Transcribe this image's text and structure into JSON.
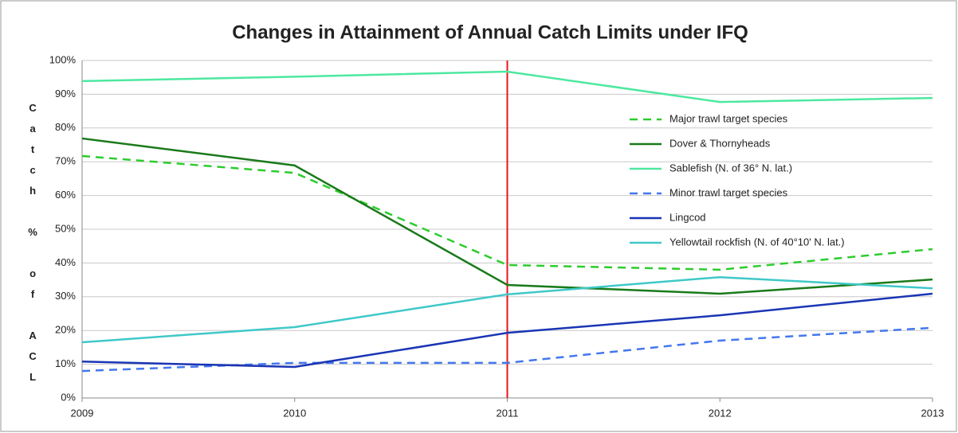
{
  "chart_data": {
    "type": "line",
    "title": "Changes in Attainment of Annual Catch Limits under IFQ",
    "y_label": "Catch % of ACL",
    "x": [
      2009,
      2010,
      2011,
      2012,
      2013
    ],
    "xlim": [
      2009,
      2013
    ],
    "xticks": [
      2009,
      2010,
      2011,
      2012,
      2013
    ],
    "ylim": [
      0,
      100
    ],
    "yticks": [
      {
        "value": 0,
        "label": "0%"
      },
      {
        "value": 10,
        "label": "10%"
      },
      {
        "value": 20,
        "label": "20%"
      },
      {
        "value": 30,
        "label": "30%"
      },
      {
        "value": 40,
        "label": "40%"
      },
      {
        "value": 50,
        "label": "50%"
      },
      {
        "value": 60,
        "label": "60%"
      },
      {
        "value": 70,
        "label": "70%"
      },
      {
        "value": 80,
        "label": "80%"
      },
      {
        "value": 90,
        "label": "90%"
      },
      {
        "value": 100,
        "label": "100%"
      }
    ],
    "grid": true,
    "legend": "right",
    "reference_line": {
      "x": 2011,
      "color": "#e8141c"
    },
    "series": [
      {
        "name": "Major trawl target species",
        "color": "#2ecc2e",
        "dashed": true,
        "values": [
          71.7,
          66.7,
          39.4,
          38.0,
          44.1
        ]
      },
      {
        "name": "Dover & Thornyheads",
        "color": "#1a7a1a",
        "dashed": false,
        "values": [
          76.9,
          68.9,
          33.5,
          30.9,
          35.1
        ]
      },
      {
        "name": "Sablefish (N. of 36° N. lat.)",
        "color": "#4de8a0",
        "dashed": false,
        "values": [
          93.9,
          95.2,
          96.7,
          87.7,
          88.9
        ]
      },
      {
        "name": "Minor trawl target species",
        "color": "#4477ee",
        "dashed": true,
        "values": [
          8.0,
          10.4,
          10.4,
          17.0,
          20.8
        ]
      },
      {
        "name": "Lingcod",
        "color": "#1a35b5",
        "dashed": false,
        "values": [
          10.8,
          9.2,
          19.3,
          24.5,
          30.9
        ]
      },
      {
        "name": "Yellowtail rockfish (N. of 40°10' N. lat.)",
        "color": "#40c8c8",
        "dashed": false,
        "values": [
          16.5,
          21.0,
          30.7,
          35.8,
          32.5
        ]
      }
    ]
  }
}
